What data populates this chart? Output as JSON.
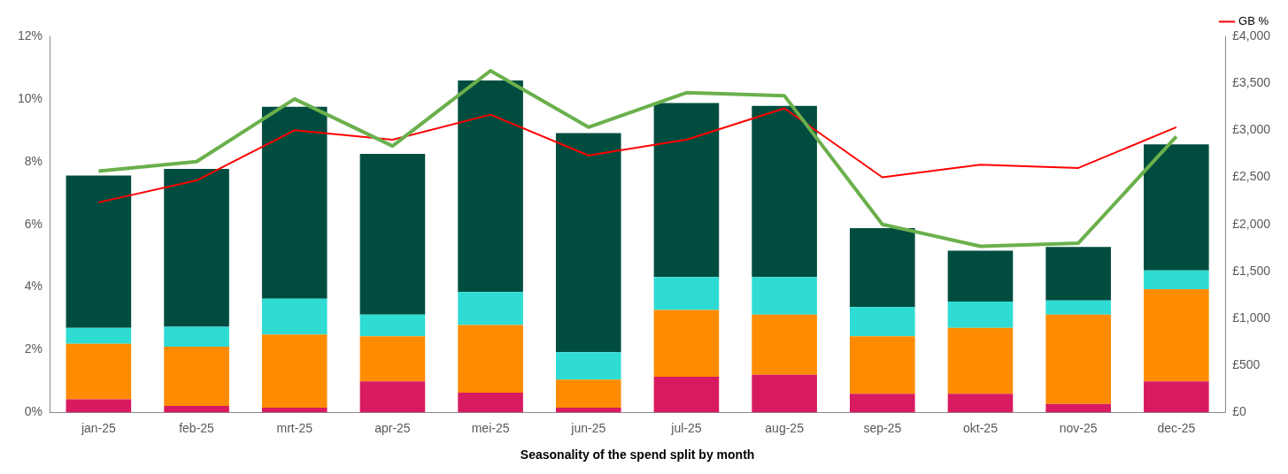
{
  "chart_data": {
    "type": "bar",
    "stacked": true,
    "xlabel": "Seasonality of the spend split by month",
    "categories": [
      "jan-25",
      "feb-25",
      "mrt-25",
      "apr-25",
      "mei-25",
      "jun-25",
      "jul-25",
      "aug-25",
      "sep-25",
      "okt-25",
      "nov-25",
      "dec-25"
    ],
    "series": [
      {
        "axis": "y2",
        "color": "#d81b60",
        "values": [
          140,
          70,
          50,
          330,
          210,
          50,
          380,
          400,
          200,
          200,
          90,
          330
        ]
      },
      {
        "axis": "y2",
        "color": "#ff8c00",
        "values": [
          590,
          630,
          780,
          480,
          720,
          300,
          710,
          640,
          610,
          700,
          950,
          980
        ]
      },
      {
        "axis": "y2",
        "color": "#2edcd4",
        "values": [
          170,
          210,
          380,
          230,
          350,
          290,
          350,
          400,
          310,
          280,
          150,
          200
        ]
      },
      {
        "axis": "y2",
        "color": "#004d40",
        "values": [
          1620,
          1680,
          2040,
          1710,
          2250,
          2330,
          1850,
          1820,
          840,
          540,
          570,
          1340
        ]
      },
      {
        "type": "line",
        "color": "#6ab04c",
        "values": [
          7.7,
          8.0,
          10.0,
          8.5,
          10.9,
          9.1,
          10.2,
          10.1,
          6.0,
          5.3,
          5.4,
          8.8
        ]
      },
      {
        "type": "line",
        "name": "GB %",
        "color": "#ff0000",
        "values": [
          6.7,
          7.4,
          9.0,
          8.7,
          9.5,
          8.2,
          8.7,
          9.7,
          7.5,
          7.9,
          7.8,
          9.1
        ]
      }
    ],
    "ylim": [
      0,
      12
    ],
    "yticks": [
      {
        "value": 0,
        "label": "0%"
      },
      {
        "value": 2,
        "label": "2%"
      },
      {
        "value": 4,
        "label": "4%"
      },
      {
        "value": 6,
        "label": "6%"
      },
      {
        "value": 8,
        "label": "8%"
      },
      {
        "value": 10,
        "label": "10%"
      },
      {
        "value": 12,
        "label": "12%"
      }
    ],
    "y2lim": [
      0,
      4000
    ],
    "y2ticks": [
      {
        "value": 0,
        "label": "£0"
      },
      {
        "value": 500,
        "label": "£500"
      },
      {
        "value": 1000,
        "label": "£1,000"
      },
      {
        "value": 1500,
        "label": "£1,500"
      },
      {
        "value": 2000,
        "label": "£2,000"
      },
      {
        "value": 2500,
        "label": "£2,500"
      },
      {
        "value": 3000,
        "label": "£3,000"
      },
      {
        "value": 3500,
        "label": "£3,500"
      },
      {
        "value": 4000,
        "label": "£4,000"
      }
    ],
    "grid": false,
    "legend": "top right",
    "marker": "none",
    "line_style": "solid"
  }
}
